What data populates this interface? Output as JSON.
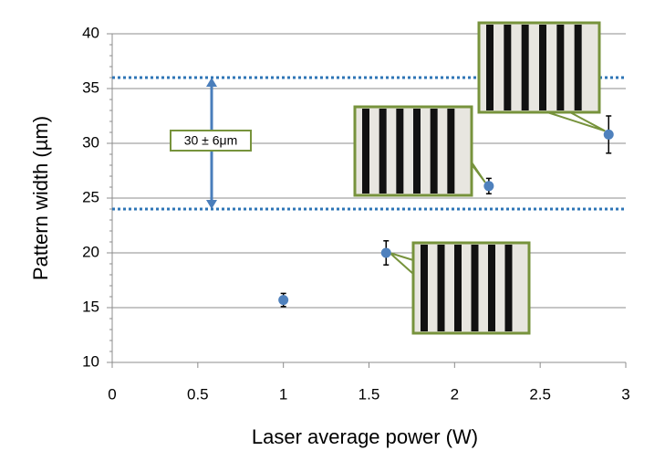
{
  "chart_data": {
    "type": "scatter",
    "x_label": "Laser average power (W)",
    "y_label": "Pattern width (µm)",
    "x": [
      1,
      1.6,
      2.2,
      2.9
    ],
    "values": [
      15.7,
      20.0,
      26.1,
      30.8
    ],
    "errors": [
      0.6,
      1.1,
      0.7,
      1.7
    ],
    "color": "#4f81bd",
    "xlim": [
      0,
      3
    ],
    "ylim": [
      10,
      40
    ],
    "xticks": [
      0,
      0.5,
      1,
      1.5,
      2,
      2.5,
      3
    ],
    "yticks": [
      10,
      15,
      20,
      25,
      30,
      35,
      40
    ],
    "grid": true,
    "reference_lines": [
      36,
      24
    ],
    "reference_color": "#2e75b6",
    "annotation": "30 ± 6μm"
  }
}
